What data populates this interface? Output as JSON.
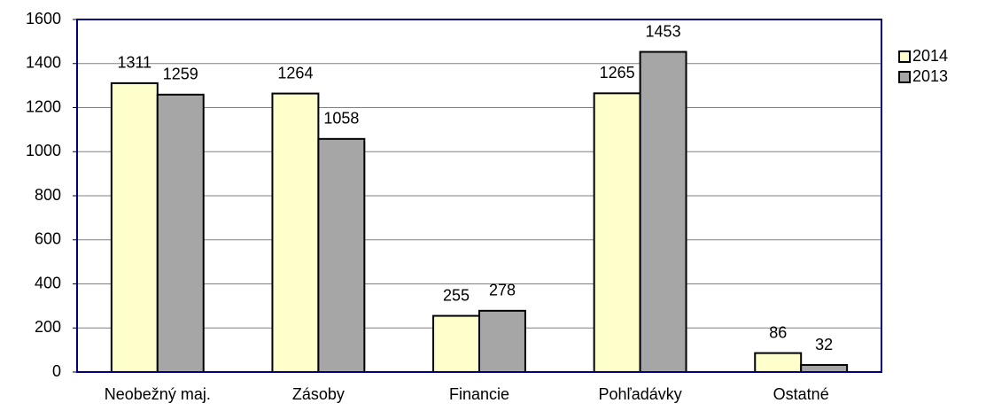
{
  "chart_data": {
    "type": "bar",
    "categories": [
      "Neobežný maj.",
      "Zásoby",
      "Financie",
      "Pohľadávky",
      "Ostatné"
    ],
    "series": [
      {
        "name": "2014",
        "color": "#ffffcc",
        "values": [
          1311,
          1264,
          255,
          1265,
          86
        ]
      },
      {
        "name": "2013",
        "color": "#a6a6a6",
        "values": [
          1259,
          1058,
          278,
          1453,
          32
        ]
      }
    ],
    "ylim": [
      0,
      1600
    ],
    "yticks": [
      0,
      200,
      400,
      600,
      800,
      1000,
      1200,
      1400,
      1600
    ],
    "grid": true,
    "legend": "right"
  }
}
